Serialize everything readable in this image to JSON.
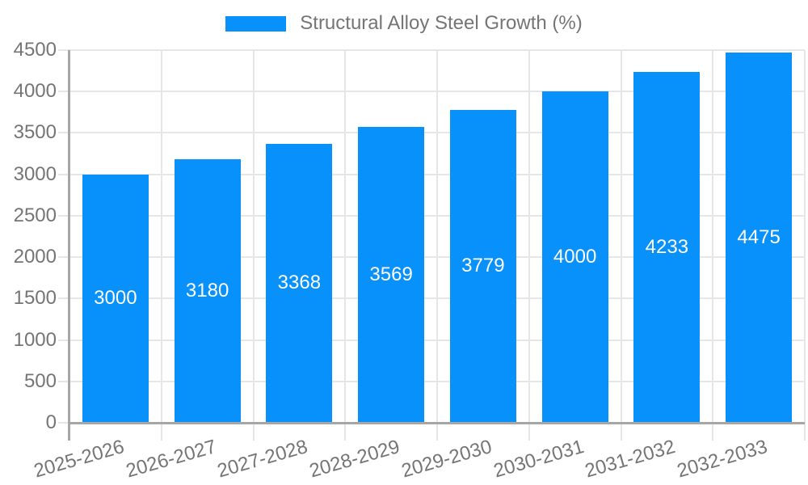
{
  "chart_data": {
    "type": "bar",
    "title": "",
    "legend_label": "Structural Alloy Steel Growth (%)",
    "categories": [
      "2025-2026",
      "2026-2027",
      "2027-2028",
      "2028-2029",
      "2029-2030",
      "2030-2031",
      "2031-2032",
      "2032-2033"
    ],
    "values": [
      3000,
      3180,
      3368,
      3569,
      3779,
      4000,
      4233,
      4475
    ],
    "series": [
      {
        "name": "Structural Alloy Steel Growth (%)",
        "values": [
          3000,
          3180,
          3368,
          3569,
          3779,
          4000,
          4233,
          4475
        ]
      }
    ],
    "xlabel": "",
    "ylabel": "",
    "ylim": [
      0,
      4500
    ],
    "yticks": [
      0,
      500,
      1000,
      1500,
      2000,
      2500,
      3000,
      3500,
      4000,
      4500
    ],
    "grid": true,
    "legend_position": "top-center",
    "value_label_position": "inside-center",
    "x_label_rotation_deg": -16,
    "colors": {
      "bar": "#0991fb",
      "gridline": "#e6e6e6",
      "axis_line": "#a6a6a6",
      "tick_text": "#757575",
      "legend_text": "#757575",
      "value_text": "#ffffff",
      "background": "#ffffff"
    }
  }
}
